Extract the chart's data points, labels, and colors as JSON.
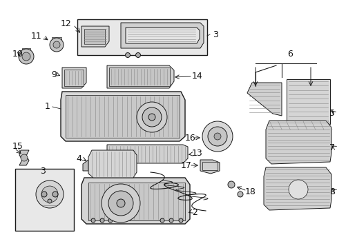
{
  "bg_color": "#ffffff",
  "fig_width": 4.89,
  "fig_height": 3.6,
  "dpi": 100,
  "lc": "#1a1a1a",
  "lw": 0.7,
  "gray_fill": "#c8c8c8",
  "gray_light": "#e0e0e0",
  "gray_med": "#b0b0b0",
  "gray_dark": "#888888",
  "label_fs": 8,
  "label_bold_fs": 9
}
